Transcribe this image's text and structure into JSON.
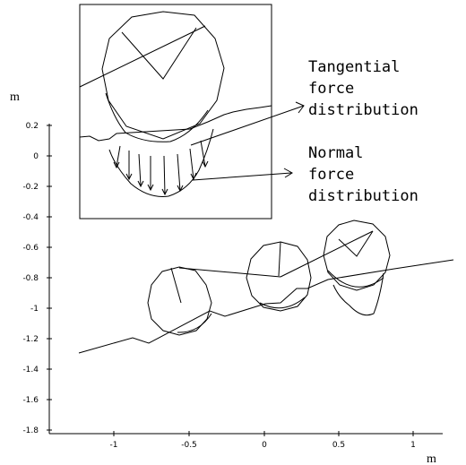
{
  "axes": {
    "y_unit": "m",
    "x_unit": "m",
    "y_ticks": [
      "0.2",
      "0",
      "-0.2",
      "-0.4",
      "-0.6",
      "-0.8",
      "-1",
      "-1.2",
      "-1.4",
      "-1.6",
      "-1.8"
    ],
    "x_ticks": [
      "-1",
      "-0.5",
      "0",
      "0.5",
      "1"
    ]
  },
  "annotations": {
    "tangential": [
      "Tangential",
      "force",
      "distribution"
    ],
    "normal": [
      "Normal",
      "force",
      "distribution"
    ]
  }
}
